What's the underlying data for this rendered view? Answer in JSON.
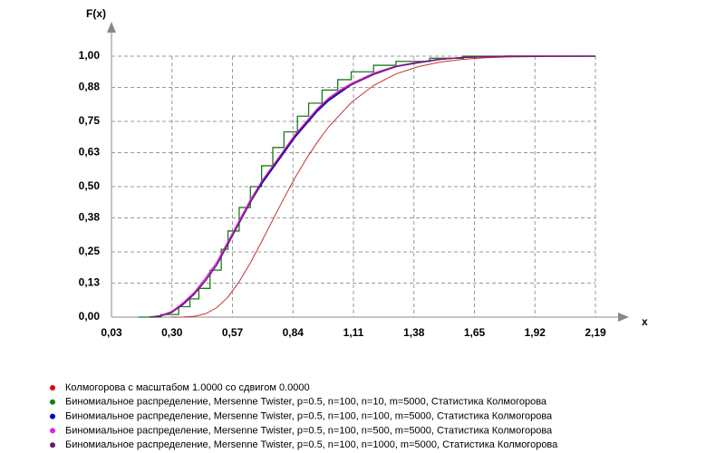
{
  "chart_data": {
    "type": "line",
    "y_label": "F(x)",
    "x_label": "x",
    "xlim": [
      0.03,
      2.19
    ],
    "xticks": [
      {
        "value": 0.03,
        "label": "0,03"
      },
      {
        "value": 0.3,
        "label": "0,30"
      },
      {
        "value": 0.57,
        "label": "0,57"
      },
      {
        "value": 0.84,
        "label": "0,84"
      },
      {
        "value": 1.11,
        "label": "1,11"
      },
      {
        "value": 1.38,
        "label": "1,38"
      },
      {
        "value": 1.65,
        "label": "1,65"
      },
      {
        "value": 1.92,
        "label": "1,92"
      },
      {
        "value": 2.19,
        "label": "2,19"
      }
    ],
    "ylim": [
      0,
      1
    ],
    "yticks": [
      {
        "value": 0,
        "label": "0,00"
      },
      {
        "value": 0.13,
        "label": "0,13"
      },
      {
        "value": 0.25,
        "label": "0,25"
      },
      {
        "value": 0.38,
        "label": "0,38"
      },
      {
        "value": 0.5,
        "label": "0,50"
      },
      {
        "value": 0.63,
        "label": "0,63"
      },
      {
        "value": 0.75,
        "label": "0,75"
      },
      {
        "value": 0.88,
        "label": "0,88"
      },
      {
        "value": 1,
        "label": "1,00"
      }
    ],
    "grid": true,
    "legend": "bottom-left",
    "series": [
      {
        "name": "Колмогорова с масштабом 1.0000 со сдвигом 0.0000",
        "color": "#c83030",
        "legend_color": "#e00000",
        "x": [
          0.3,
          0.35,
          0.4,
          0.45,
          0.5,
          0.55,
          0.6,
          0.65,
          0.7,
          0.75,
          0.8,
          0.85,
          0.9,
          0.95,
          1.0,
          1.1,
          1.2,
          1.3,
          1.4,
          1.5,
          1.6,
          1.7,
          1.8,
          2.0,
          2.19
        ],
        "values": [
          0,
          0.0003,
          0.003,
          0.013,
          0.036,
          0.077,
          0.136,
          0.208,
          0.289,
          0.373,
          0.456,
          0.535,
          0.607,
          0.672,
          0.73,
          0.822,
          0.888,
          0.932,
          0.96,
          0.978,
          0.988,
          0.994,
          0.997,
          0.999,
          1
        ]
      },
      {
        "name": "Биномиальное распределение, Mersenne Twister, p=0.5, n=100, n=10, m=5000, Статистика Колмогорова",
        "color": "#1a7a1a",
        "x": [
          0.15,
          0.25,
          0.25,
          0.33,
          0.33,
          0.38,
          0.38,
          0.42,
          0.42,
          0.47,
          0.47,
          0.52,
          0.52,
          0.55,
          0.55,
          0.6,
          0.6,
          0.65,
          0.65,
          0.7,
          0.7,
          0.75,
          0.75,
          0.8,
          0.8,
          0.86,
          0.86,
          0.91,
          0.91,
          0.97,
          0.97,
          1.04,
          1.04,
          1.1,
          1.1,
          1.2,
          1.2,
          1.3,
          1.3,
          1.45,
          1.45,
          1.6,
          1.6,
          2.19
        ],
        "values": [
          0,
          0,
          0.01,
          0.01,
          0.04,
          0.04,
          0.07,
          0.07,
          0.11,
          0.11,
          0.18,
          0.18,
          0.26,
          0.26,
          0.33,
          0.33,
          0.42,
          0.42,
          0.5,
          0.5,
          0.58,
          0.58,
          0.65,
          0.65,
          0.71,
          0.71,
          0.77,
          0.77,
          0.82,
          0.82,
          0.87,
          0.87,
          0.91,
          0.91,
          0.94,
          0.94,
          0.965,
          0.965,
          0.98,
          0.98,
          0.992,
          0.992,
          1,
          1
        ]
      },
      {
        "name": "Биномиальное распределение, Mersenne Twister, p=0.5, n=100, n=100, m=5000, Статистика Колмогорова",
        "color": "#0000cc",
        "x": [
          0.2,
          0.25,
          0.3,
          0.35,
          0.4,
          0.45,
          0.5,
          0.55,
          0.6,
          0.65,
          0.7,
          0.75,
          0.8,
          0.85,
          0.9,
          0.95,
          1.0,
          1.05,
          1.1,
          1.2,
          1.3,
          1.4,
          1.5,
          1.6,
          1.7,
          1.8,
          2.19
        ],
        "values": [
          0,
          0.005,
          0.02,
          0.05,
          0.09,
          0.14,
          0.2,
          0.28,
          0.36,
          0.44,
          0.51,
          0.57,
          0.63,
          0.69,
          0.74,
          0.79,
          0.83,
          0.86,
          0.89,
          0.93,
          0.96,
          0.975,
          0.988,
          0.995,
          0.998,
          1,
          1
        ]
      },
      {
        "name": "Биномиальное распределение, Mersenne Twister, p=0.5, n=100, n=500, m=5000, Статистика Колмогорова",
        "color": "#e020e0",
        "x": [
          0.2,
          0.25,
          0.3,
          0.35,
          0.4,
          0.45,
          0.5,
          0.55,
          0.6,
          0.65,
          0.7,
          0.75,
          0.8,
          0.85,
          0.9,
          0.95,
          1.0,
          1.05,
          1.1,
          1.2,
          1.3,
          1.4,
          1.5,
          1.6,
          1.7,
          1.8,
          2.19
        ],
        "values": [
          0,
          0.006,
          0.022,
          0.055,
          0.095,
          0.15,
          0.21,
          0.29,
          0.37,
          0.45,
          0.52,
          0.58,
          0.64,
          0.7,
          0.75,
          0.8,
          0.84,
          0.87,
          0.895,
          0.935,
          0.962,
          0.977,
          0.989,
          0.995,
          0.998,
          1,
          1
        ]
      },
      {
        "name": "Биномиальное распределение, Mersenne Twister, p=0.5, n=100, n=1000, m=5000, Статистика Колмогорова",
        "color": "#6a1a6a",
        "x": [
          0.2,
          0.25,
          0.3,
          0.35,
          0.4,
          0.45,
          0.5,
          0.55,
          0.6,
          0.65,
          0.7,
          0.75,
          0.8,
          0.85,
          0.9,
          0.95,
          1.0,
          1.05,
          1.1,
          1.2,
          1.3,
          1.4,
          1.5,
          1.6,
          1.7,
          1.8,
          2.19
        ],
        "values": [
          0,
          0.004,
          0.018,
          0.048,
          0.088,
          0.14,
          0.2,
          0.28,
          0.36,
          0.44,
          0.515,
          0.575,
          0.635,
          0.695,
          0.745,
          0.795,
          0.835,
          0.865,
          0.89,
          0.93,
          0.96,
          0.976,
          0.988,
          0.995,
          0.998,
          1,
          1
        ]
      }
    ]
  }
}
